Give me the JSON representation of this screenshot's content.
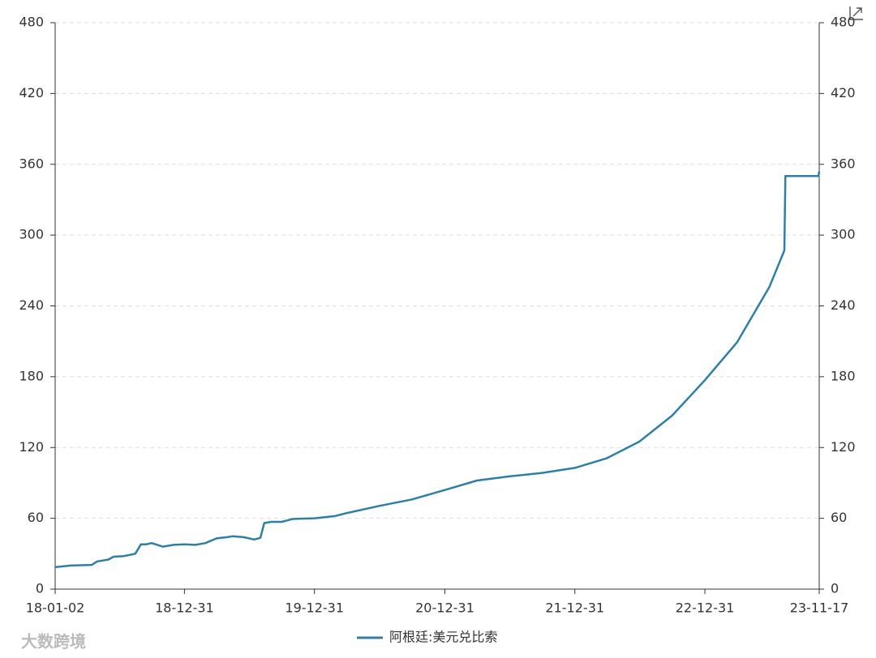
{
  "chart_data": {
    "type": "line",
    "x": [
      "18-01-02",
      "18-02-15",
      "18-04-15",
      "18-04-30",
      "18-05-31",
      "18-06-15",
      "18-07-15",
      "18-08-15",
      "18-08-31",
      "18-09-15",
      "18-09-30",
      "18-10-31",
      "18-11-30",
      "18-12-31",
      "19-01-31",
      "19-02-28",
      "19-03-31",
      "19-04-30",
      "19-05-15",
      "19-06-15",
      "19-07-15",
      "19-08-01",
      "19-08-12",
      "19-08-31",
      "19-09-30",
      "19-10-31",
      "19-12-31",
      "20-02-28",
      "20-03-31",
      "20-06-30",
      "20-09-30",
      "20-12-31",
      "21-03-31",
      "21-06-30",
      "21-09-30",
      "21-12-31",
      "22-03-31",
      "22-06-30",
      "22-09-30",
      "22-12-31",
      "23-03-31",
      "23-06-30",
      "23-08-11",
      "23-08-14",
      "23-11-15",
      "23-11-17"
    ],
    "series": [
      {
        "name": "阿根廷:美元兑比索",
        "color": "#2e7fa8",
        "values": [
          18.6,
          20,
          20.5,
          23.5,
          25,
          27.5,
          28,
          30,
          38,
          38,
          39,
          36,
          37.5,
          38,
          37.5,
          39,
          43,
          44,
          44.8,
          44,
          42,
          43.5,
          56,
          57,
          57,
          59.5,
          60,
          62,
          64.5,
          70.5,
          76,
          84,
          92,
          95.5,
          98.5,
          102.7,
          111,
          125,
          147,
          177,
          209,
          256,
          287,
          350,
          350,
          354
        ]
      }
    ],
    "xlim": [
      "18-01-02",
      "23-11-17"
    ],
    "xticks": [
      "18-01-02",
      "18-12-31",
      "19-12-31",
      "20-12-31",
      "21-12-31",
      "22-12-31",
      "23-11-17"
    ],
    "ylim": [
      0,
      480
    ],
    "yticks": [
      0,
      60,
      120,
      180,
      240,
      300,
      360,
      420,
      480
    ],
    "y2lim": [
      0,
      480
    ],
    "y2ticks": [
      0,
      60,
      120,
      180,
      240,
      300,
      360,
      420,
      480
    ],
    "grid": true,
    "legend": "bottom",
    "watermark": "大数跨境"
  }
}
